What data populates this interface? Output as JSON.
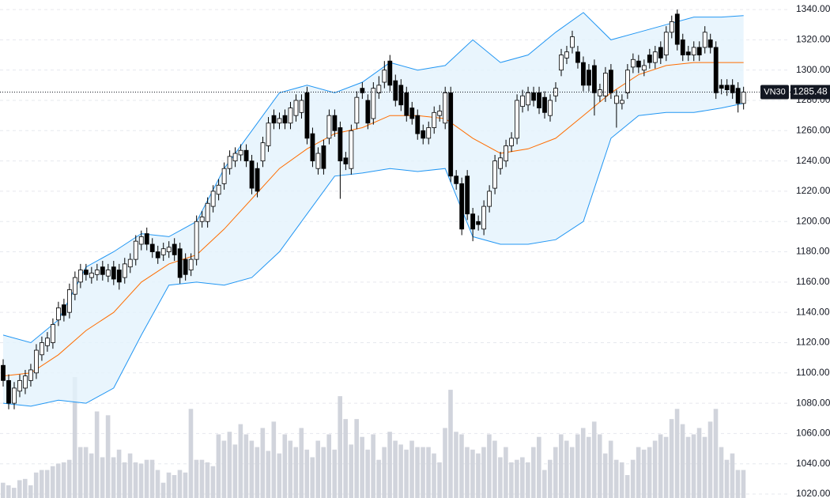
{
  "chart_data": {
    "type": "candlestick",
    "symbol": "VN30",
    "ylim": [
      1017.4,
      1346.3
    ],
    "yticks": [
      {
        "value": 1020,
        "label": "1020.00"
      },
      {
        "value": 1040,
        "label": "1040.00"
      },
      {
        "value": 1060,
        "label": "1060.00"
      },
      {
        "value": 1080,
        "label": "1080.00"
      },
      {
        "value": 1100,
        "label": "1100.00"
      },
      {
        "value": 1120,
        "label": "1120.00"
      },
      {
        "value": 1140,
        "label": "1140.00"
      },
      {
        "value": 1160,
        "label": "1160.00"
      },
      {
        "value": 1180,
        "label": "1180.00"
      },
      {
        "value": 1200,
        "label": "1200.00"
      },
      {
        "value": 1220,
        "label": "1220.00"
      },
      {
        "value": 1240,
        "label": "1240.00"
      },
      {
        "value": 1260,
        "label": "1260.00"
      },
      {
        "value": 1280,
        "label": "1280.00"
      },
      {
        "value": 1300,
        "label": "1300.00"
      },
      {
        "value": 1320,
        "label": "1320.00"
      },
      {
        "value": 1340,
        "label": "1340.00"
      }
    ],
    "grid": true,
    "up_color": "#ffffff",
    "down_color": "#000000",
    "volume_color": "#d1d4dc",
    "open": [
      1105,
      1095,
      1080,
      1088,
      1090,
      1095,
      1100,
      1112,
      1118,
      1120,
      1135,
      1145,
      1140,
      1152,
      1160,
      1168,
      1163,
      1165,
      1170,
      1164,
      1170,
      1168,
      1163,
      1170,
      1175,
      1185,
      1192,
      1185,
      1180,
      1178,
      1180,
      1185,
      1182,
      1175,
      1168,
      1175,
      1200,
      1200,
      1210,
      1218,
      1225,
      1235,
      1240,
      1244,
      1247,
      1240,
      1235,
      1240,
      1250,
      1270,
      1265,
      1270,
      1265,
      1270,
      1272,
      1285,
      1258,
      1235,
      1250,
      1255,
      1270,
      1262,
      1242,
      1235,
      1265,
      1288,
      1280,
      1268,
      1285,
      1292,
      1306,
      1293,
      1290,
      1285,
      1275,
      1270,
      1260,
      1255,
      1262,
      1270,
      1265,
      1285,
      1230,
      1225,
      1230,
      1205,
      1200,
      1195,
      1210,
      1222,
      1235,
      1240,
      1250,
      1255,
      1276,
      1277,
      1285,
      1285,
      1282,
      1270,
      1283,
      1300,
      1308,
      1315,
      1312,
      1305,
      1300,
      1303,
      1283,
      1283,
      1300,
      1278,
      1278,
      1285,
      1302,
      1306,
      1300,
      1310,
      1305,
      1315,
      1310,
      1325,
      1337,
      1320,
      1312,
      1310,
      1315,
      1315,
      1320,
      1315,
      1290,
      1290,
      1290,
      1288,
      1278
    ],
    "high": [
      1109,
      1099,
      1094,
      1099,
      1102,
      1106,
      1119,
      1124,
      1127,
      1136,
      1147,
      1149,
      1159,
      1167,
      1172,
      1172,
      1170,
      1172,
      1174,
      1172,
      1174,
      1172,
      1176,
      1179,
      1191,
      1194,
      1196,
      1189,
      1184,
      1186,
      1187,
      1189,
      1186,
      1179,
      1179,
      1204,
      1207,
      1216,
      1224,
      1228,
      1239,
      1247,
      1249,
      1251,
      1251,
      1244,
      1239,
      1256,
      1269,
      1274,
      1272,
      1274,
      1279,
      1284,
      1284,
      1289,
      1262,
      1249,
      1254,
      1274,
      1274,
      1266,
      1246,
      1264,
      1286,
      1292,
      1284,
      1292,
      1296,
      1306,
      1310,
      1297,
      1294,
      1289,
      1279,
      1274,
      1264,
      1266,
      1276,
      1277,
      1289,
      1289,
      1234,
      1229,
      1234,
      1209,
      1204,
      1214,
      1224,
      1244,
      1246,
      1254,
      1259,
      1284,
      1287,
      1289,
      1289,
      1289,
      1286,
      1284,
      1292,
      1314,
      1316,
      1326,
      1316,
      1309,
      1304,
      1307,
      1291,
      1302,
      1304,
      1287,
      1284,
      1304,
      1311,
      1310,
      1307,
      1314,
      1316,
      1319,
      1329,
      1336,
      1340,
      1324,
      1316,
      1319,
      1319,
      1329,
      1324,
      1319,
      1294,
      1294,
      1294,
      1292,
      1289
    ],
    "low": [
      1091,
      1076,
      1076,
      1084,
      1086,
      1091,
      1096,
      1108,
      1114,
      1116,
      1131,
      1134,
      1136,
      1148,
      1156,
      1161,
      1159,
      1161,
      1161,
      1160,
      1158,
      1155,
      1159,
      1166,
      1171,
      1181,
      1181,
      1176,
      1172,
      1174,
      1176,
      1174,
      1159,
      1161,
      1164,
      1171,
      1196,
      1196,
      1206,
      1214,
      1221,
      1231,
      1236,
      1240,
      1236,
      1218,
      1216,
      1236,
      1246,
      1261,
      1261,
      1261,
      1261,
      1266,
      1268,
      1251,
      1236,
      1231,
      1231,
      1251,
      1256,
      1215,
      1234,
      1231,
      1261,
      1281,
      1261,
      1264,
      1281,
      1288,
      1286,
      1276,
      1273,
      1266,
      1264,
      1254,
      1251,
      1251,
      1258,
      1266,
      1261,
      1226,
      1221,
      1191,
      1201,
      1187,
      1194,
      1191,
      1206,
      1218,
      1231,
      1236,
      1246,
      1251,
      1272,
      1273,
      1276,
      1271,
      1268,
      1266,
      1279,
      1296,
      1304,
      1311,
      1301,
      1286,
      1286,
      1270,
      1279,
      1279,
      1281,
      1262,
      1274,
      1281,
      1298,
      1298,
      1296,
      1301,
      1301,
      1304,
      1306,
      1321,
      1313,
      1306,
      1306,
      1306,
      1306,
      1311,
      1311,
      1281,
      1284,
      1283,
      1281,
      1272,
      1274
    ],
    "close": [
      1095,
      1080,
      1090,
      1095,
      1098,
      1102,
      1115,
      1120,
      1123,
      1132,
      1143,
      1138,
      1155,
      1163,
      1168,
      1165,
      1166,
      1168,
      1165,
      1168,
      1162,
      1160,
      1172,
      1175,
      1187,
      1190,
      1185,
      1180,
      1176,
      1182,
      1183,
      1178,
      1163,
      1165,
      1175,
      1200,
      1203,
      1212,
      1220,
      1224,
      1235,
      1243,
      1245,
      1247,
      1240,
      1222,
      1220,
      1252,
      1265,
      1265,
      1268,
      1265,
      1275,
      1280,
      1280,
      1255,
      1240,
      1245,
      1235,
      1270,
      1260,
      1240,
      1238,
      1260,
      1282,
      1285,
      1265,
      1288,
      1290,
      1300,
      1290,
      1280,
      1277,
      1270,
      1268,
      1258,
      1255,
      1262,
      1272,
      1273,
      1285,
      1230,
      1225,
      1195,
      1205,
      1195,
      1198,
      1210,
      1220,
      1240,
      1242,
      1250,
      1255,
      1280,
      1283,
      1285,
      1280,
      1275,
      1272,
      1280,
      1288,
      1310,
      1312,
      1322,
      1305,
      1290,
      1290,
      1285,
      1287,
      1298,
      1285,
      1283,
      1280,
      1300,
      1307,
      1302,
      1303,
      1305,
      1312,
      1308,
      1325,
      1332,
      1317,
      1310,
      1310,
      1315,
      1310,
      1325,
      1315,
      1285,
      1288,
      1287,
      1285,
      1278,
      1285.48
    ],
    "volume": [
      12,
      10,
      8,
      14,
      15,
      10,
      20,
      22,
      22,
      25,
      27,
      28,
      30,
      95,
      40,
      40,
      35,
      68,
      32,
      65,
      32,
      38,
      28,
      35,
      28,
      27,
      30,
      30,
      22,
      12,
      20,
      18,
      22,
      20,
      70,
      30,
      30,
      28,
      25,
      50,
      45,
      52,
      42,
      58,
      50,
      45,
      40,
      55,
      37,
      60,
      35,
      50,
      45,
      40,
      55,
      38,
      32,
      45,
      40,
      50,
      38,
      80,
      62,
      42,
      62,
      48,
      38,
      50,
      30,
      40,
      52,
      45,
      42,
      38,
      45,
      40,
      40,
      40,
      35,
      28,
      55,
      85,
      52,
      50,
      40,
      38,
      35,
      40,
      50,
      45,
      32,
      40,
      28,
      30,
      32,
      28,
      40,
      48,
      22,
      30,
      40,
      50,
      45,
      40,
      50,
      55,
      48,
      60,
      50,
      35,
      45,
      30,
      28,
      18,
      30,
      40,
      38,
      40,
      45,
      50,
      48,
      62,
      70,
      58,
      48,
      50,
      55,
      48,
      60,
      70,
      40,
      30,
      35,
      22,
      22
    ],
    "bands": {
      "x": [
        0,
        5,
        10,
        15,
        20,
        25,
        30,
        35,
        40,
        45,
        50,
        55,
        60,
        65,
        70,
        75,
        80,
        85,
        90,
        95,
        100,
        105,
        110,
        115,
        120,
        125,
        130,
        134
      ],
      "upper": [
        1125,
        1120,
        1135,
        1170,
        1180,
        1192,
        1190,
        1200,
        1235,
        1260,
        1285,
        1290,
        1285,
        1292,
        1305,
        1300,
        1303,
        1320,
        1305,
        1310,
        1325,
        1338,
        1320,
        1325,
        1330,
        1335,
        1335,
        1336
      ],
      "middle": [
        1098,
        1100,
        1112,
        1128,
        1140,
        1160,
        1172,
        1178,
        1195,
        1215,
        1235,
        1248,
        1258,
        1262,
        1270,
        1270,
        1268,
        1255,
        1245,
        1248,
        1255,
        1270,
        1285,
        1297,
        1303,
        1305,
        1305,
        1305
      ],
      "lower": [
        1080,
        1078,
        1082,
        1080,
        1090,
        1125,
        1158,
        1160,
        1158,
        1163,
        1180,
        1205,
        1230,
        1232,
        1235,
        1233,
        1235,
        1190,
        1185,
        1185,
        1188,
        1200,
        1255,
        1270,
        1272,
        1272,
        1275,
        1278
      ],
      "band_color": "#2196f3",
      "middle_color": "#ff6d00",
      "fill_color": "#e3f2fd"
    }
  }
}
